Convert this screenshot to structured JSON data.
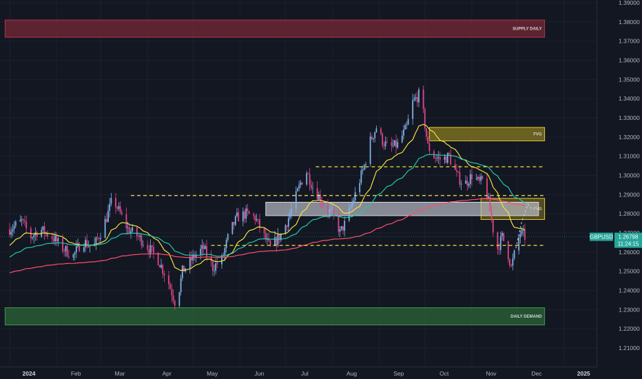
{
  "chart_data": {
    "type": "candlestick",
    "symbol": "GBPUSD",
    "last_price": "1.26798",
    "countdown": "11:24:15",
    "ylim": [
      1.205,
      1.39
    ],
    "y_ticks": [
      "1.39000",
      "1.38000",
      "1.37000",
      "1.36000",
      "1.35000",
      "1.34000",
      "1.33000",
      "1.32000",
      "1.31000",
      "1.30000",
      "1.29000",
      "1.28000",
      "1.27000",
      "1.26000",
      "1.25000",
      "1.24000",
      "1.23000",
      "1.22000",
      "1.21000"
    ],
    "y_tick_values": [
      1.39,
      1.38,
      1.37,
      1.36,
      1.35,
      1.34,
      1.33,
      1.32,
      1.31,
      1.3,
      1.29,
      1.28,
      1.27,
      1.26,
      1.25,
      1.24,
      1.23,
      1.22,
      1.21
    ],
    "x_ticks": [
      {
        "label": "2024",
        "day": 0,
        "year": true
      },
      {
        "label": "Feb",
        "day": 31
      },
      {
        "label": "Mar",
        "day": 60
      },
      {
        "label": "Apr",
        "day": 91
      },
      {
        "label": "May",
        "day": 121
      },
      {
        "label": "Jun",
        "day": 152
      },
      {
        "label": "Jul",
        "day": 182
      },
      {
        "label": "Aug",
        "day": 213
      },
      {
        "label": "Sep",
        "day": 244
      },
      {
        "label": "Oct",
        "day": 274
      },
      {
        "label": "Nov",
        "day": 305
      },
      {
        "label": "Dec",
        "day": 335
      },
      {
        "label": "2025",
        "day": 366,
        "year": true
      }
    ],
    "price_path": [
      [
        0,
        1.272
      ],
      [
        8,
        1.276
      ],
      [
        14,
        1.268
      ],
      [
        20,
        1.272
      ],
      [
        28,
        1.268
      ],
      [
        35,
        1.262
      ],
      [
        42,
        1.258
      ],
      [
        48,
        1.266
      ],
      [
        55,
        1.262
      ],
      [
        60,
        1.27
      ],
      [
        64,
        1.278
      ],
      [
        68,
        1.288
      ],
      [
        73,
        1.28
      ],
      [
        78,
        1.272
      ],
      [
        85,
        1.268
      ],
      [
        92,
        1.262
      ],
      [
        98,
        1.256
      ],
      [
        104,
        1.246
      ],
      [
        110,
        1.232
      ],
      [
        114,
        1.25
      ],
      [
        118,
        1.254
      ],
      [
        122,
        1.258
      ],
      [
        128,
        1.262
      ],
      [
        134,
        1.252
      ],
      [
        140,
        1.256
      ],
      [
        145,
        1.27
      ],
      [
        150,
        1.278
      ],
      [
        156,
        1.28
      ],
      [
        162,
        1.278
      ],
      [
        168,
        1.268
      ],
      [
        172,
        1.262
      ],
      [
        176,
        1.266
      ],
      [
        180,
        1.27
      ],
      [
        186,
        1.282
      ],
      [
        192,
        1.296
      ],
      [
        196,
        1.302
      ],
      [
        200,
        1.294
      ],
      [
        205,
        1.288
      ],
      [
        210,
        1.282
      ],
      [
        215,
        1.278
      ],
      [
        218,
        1.27
      ],
      [
        222,
        1.276
      ],
      [
        228,
        1.29
      ],
      [
        234,
        1.305
      ],
      [
        238,
        1.318
      ],
      [
        242,
        1.325
      ],
      [
        246,
        1.318
      ],
      [
        250,
        1.314
      ],
      [
        256,
        1.316
      ],
      [
        262,
        1.325
      ],
      [
        266,
        1.338
      ],
      [
        270,
        1.342
      ],
      [
        273,
        1.332
      ],
      [
        276,
        1.315
      ],
      [
        280,
        1.31
      ],
      [
        285,
        1.308
      ],
      [
        290,
        1.31
      ],
      [
        295,
        1.3
      ],
      [
        300,
        1.295
      ],
      [
        305,
        1.3
      ],
      [
        310,
        1.296
      ],
      [
        313,
        1.298
      ],
      [
        316,
        1.286
      ],
      [
        319,
        1.272
      ],
      [
        322,
        1.262
      ],
      [
        325,
        1.268
      ],
      [
        328,
        1.262
      ],
      [
        331,
        1.252
      ],
      [
        334,
        1.262
      ],
      [
        337,
        1.27
      ],
      [
        340,
        1.268
      ]
    ],
    "moving_averages": [
      {
        "color": "#f5e342",
        "period": 21
      },
      {
        "color": "#26c6aa",
        "period": 55
      },
      {
        "color": "#ff4f6d",
        "period": 200
      }
    ],
    "zones": [
      {
        "label": "SUPPLY DAILY",
        "from_day": -3,
        "to_day": 353,
        "low": 1.372,
        "high": 1.381,
        "fill": "#6b2633",
        "stroke": "#b0364b"
      },
      {
        "label": "DAILY DEMAND",
        "from_day": -3,
        "to_day": 353,
        "low": 1.222,
        "high": 1.231,
        "fill": "#285c34",
        "stroke": "#3f9650"
      },
      {
        "label": "FVG",
        "from_day": 277,
        "to_day": 353,
        "low": 1.318,
        "high": 1.325,
        "fill": "#7a6d1e",
        "stroke": "#e3cc3a"
      },
      {
        "label": "FVG",
        "from_day": 311,
        "to_day": 353,
        "low": 1.277,
        "high": 1.288,
        "fill": "#5e5520",
        "stroke": "#e3cc3a"
      },
      {
        "label": "",
        "from_day": 169,
        "to_day": 349,
        "low": 1.279,
        "high": 1.286,
        "fill": "#b9bcc4",
        "stroke": "#d6d8dd"
      }
    ],
    "dashed_levels": [
      {
        "price": 1.2895,
        "from_day": 80,
        "to_day": 353
      },
      {
        "price": 1.3045,
        "from_day": 202,
        "to_day": 353
      },
      {
        "price": 1.2635,
        "from_day": 133,
        "to_day": 353
      }
    ],
    "projection": [
      [
        334,
        1.262
      ],
      [
        338,
        1.276
      ],
      [
        342,
        1.285
      ],
      [
        345,
        1.282
      ]
    ]
  }
}
